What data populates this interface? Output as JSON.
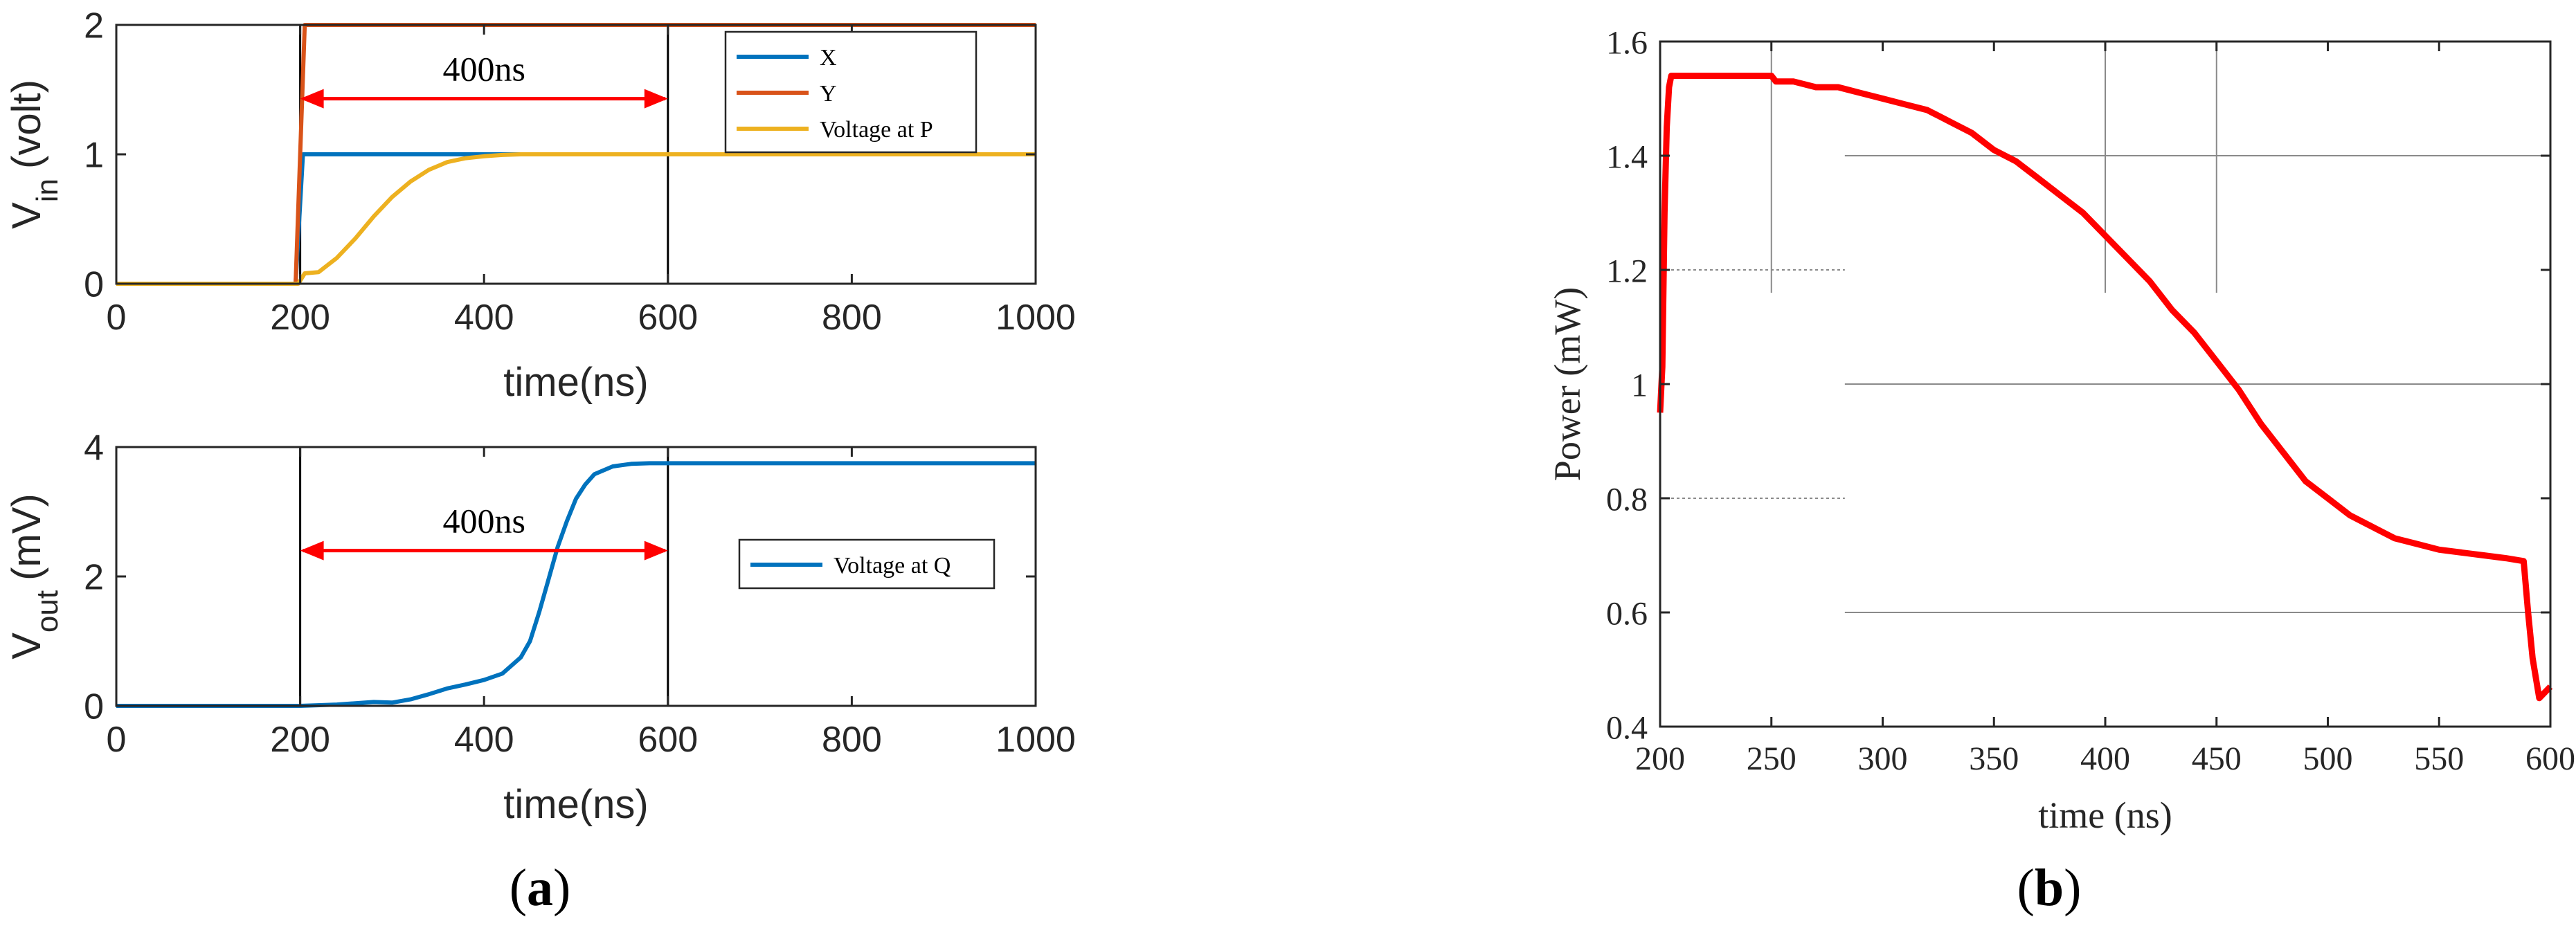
{
  "panels": [
    {
      "label": "(a)",
      "letter": "a"
    },
    {
      "label": "(b)",
      "letter": "b"
    }
  ],
  "colors": {
    "X": "#0072BD",
    "Y": "#D95319",
    "P": "#EDB120",
    "Q": "#0072BD",
    "power": "#FF0000",
    "arrow": "#FF0000"
  },
  "chart_data": [
    {
      "type": "line",
      "panel": "a-top",
      "xlabel": "time(ns)",
      "ylabel_main": "V",
      "ylabel_sub": "in",
      "ylabel_unit": "(volt)",
      "xlim": [
        0,
        1000
      ],
      "ylim": [
        0,
        2
      ],
      "xticks": [
        0,
        200,
        400,
        600,
        800,
        1000
      ],
      "yticks": [
        0,
        1,
        2
      ],
      "annotation": {
        "text": "400ns",
        "x_from": 200,
        "x_to": 600,
        "y": 1.43
      },
      "vlines": [
        200,
        600
      ],
      "legend_position": "top-right",
      "series": [
        {
          "name": "X",
          "color": "#0072BD",
          "x": [
            0,
            195,
            203,
            1000
          ],
          "y": [
            0,
            0,
            1,
            1
          ]
        },
        {
          "name": "Y",
          "color": "#D95319",
          "x": [
            0,
            195,
            205,
            1000
          ],
          "y": [
            0,
            0,
            2,
            2
          ]
        },
        {
          "name": "Voltage at P",
          "color": "#EDB120",
          "x": [
            0,
            198,
            205,
            220,
            240,
            260,
            280,
            300,
            320,
            340,
            360,
            380,
            400,
            420,
            440,
            470,
            1000
          ],
          "y": [
            0,
            0,
            0.08,
            0.09,
            0.2,
            0.35,
            0.52,
            0.67,
            0.79,
            0.88,
            0.94,
            0.97,
            0.985,
            0.995,
            1,
            1,
            1
          ]
        }
      ]
    },
    {
      "type": "line",
      "panel": "a-bottom",
      "xlabel": "time(ns)",
      "ylabel_main": "V",
      "ylabel_sub": "out",
      "ylabel_unit": "(mV)",
      "xlim": [
        0,
        1000
      ],
      "ylim": [
        0,
        4
      ],
      "xticks": [
        0,
        200,
        400,
        600,
        800,
        1000
      ],
      "yticks": [
        0,
        2,
        4
      ],
      "annotation": {
        "text": "400ns",
        "x_from": 200,
        "x_to": 600,
        "y": 2.4
      },
      "vlines": [
        200,
        600
      ],
      "legend_position": "right",
      "series": [
        {
          "name": "Voltage at Q",
          "color": "#0072BD",
          "x": [
            0,
            200,
            240,
            280,
            300,
            320,
            340,
            360,
            380,
            400,
            420,
            440,
            450,
            460,
            470,
            480,
            490,
            500,
            510,
            520,
            540,
            560,
            580,
            600,
            1000
          ],
          "y": [
            0,
            0,
            0.02,
            0.06,
            0.05,
            0.1,
            0.18,
            0.27,
            0.33,
            0.4,
            0.5,
            0.75,
            1.0,
            1.45,
            1.95,
            2.45,
            2.85,
            3.2,
            3.42,
            3.58,
            3.7,
            3.74,
            3.75,
            3.75,
            3.75
          ]
        }
      ]
    },
    {
      "type": "line",
      "panel": "b",
      "xlabel": "time (ns)",
      "ylabel": "Power (mW)",
      "xlim": [
        200,
        600
      ],
      "ylim": [
        0.4,
        1.6
      ],
      "xticks": [
        200,
        250,
        300,
        350,
        400,
        450,
        500,
        550,
        600
      ],
      "ytick_labels": [
        "0.4",
        "0.6",
        "0.8",
        "1",
        "1.2",
        "1.4",
        "1.6"
      ],
      "yticks": [
        0.4,
        0.6,
        0.8,
        1.0,
        1.2,
        1.4,
        1.6
      ],
      "series": [
        {
          "name": "",
          "color": "#FF0000",
          "x": [
            200,
            201,
            202,
            203,
            204,
            205,
            210,
            220,
            230,
            240,
            250,
            252,
            260,
            270,
            280,
            290,
            300,
            310,
            320,
            330,
            340,
            350,
            360,
            370,
            380,
            390,
            400,
            410,
            420,
            430,
            440,
            450,
            460,
            470,
            480,
            490,
            500,
            510,
            520,
            530,
            540,
            550,
            560,
            570,
            580,
            588,
            590,
            592,
            595,
            600
          ],
          "y": [
            0.95,
            1.03,
            1.3,
            1.45,
            1.52,
            1.54,
            1.54,
            1.54,
            1.54,
            1.54,
            1.54,
            1.53,
            1.53,
            1.52,
            1.52,
            1.51,
            1.5,
            1.49,
            1.48,
            1.46,
            1.44,
            1.41,
            1.39,
            1.36,
            1.33,
            1.3,
            1.26,
            1.22,
            1.18,
            1.13,
            1.09,
            1.04,
            0.99,
            0.93,
            0.88,
            0.83,
            0.8,
            0.77,
            0.75,
            0.73,
            0.72,
            0.71,
            0.705,
            0.7,
            0.695,
            0.69,
            0.6,
            0.52,
            0.45,
            0.47
          ]
        }
      ]
    }
  ]
}
